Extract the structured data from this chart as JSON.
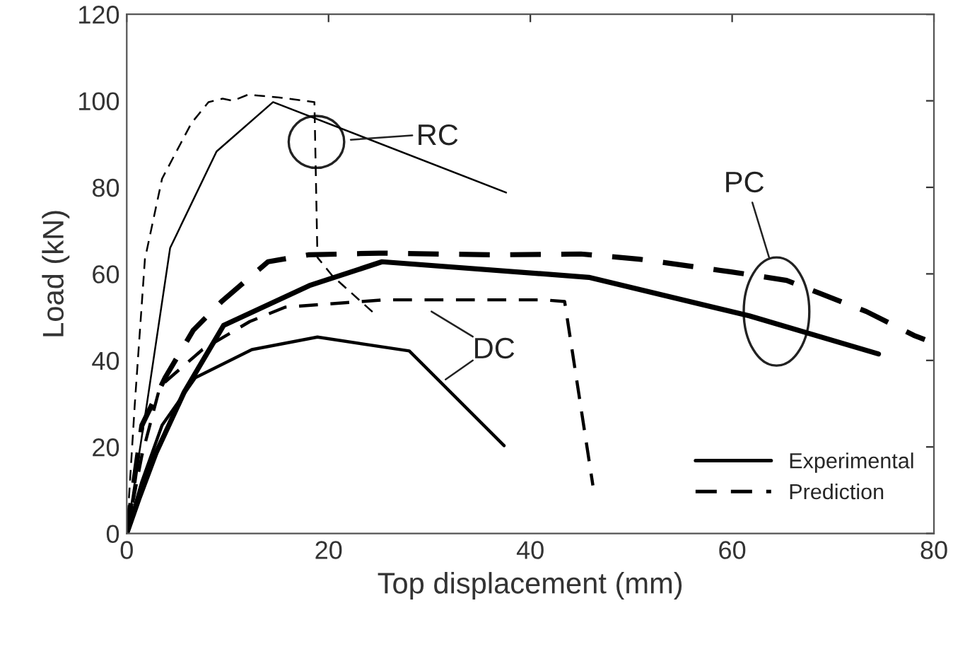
{
  "chart_data": {
    "type": "line",
    "xlabel": "Top displacement (mm)",
    "ylabel": "Load (kN)",
    "xlim": [
      0,
      80
    ],
    "xticks": [
      0,
      20,
      40,
      60,
      80
    ],
    "ylim": [
      0,
      120
    ],
    "yticks": [
      0,
      20,
      40,
      60,
      80,
      100,
      120
    ],
    "grid": false,
    "legend": "bottom right",
    "marker": "none",
    "series": [
      {
        "color": "#000000",
        "line_style": "solid",
        "x": [
          0,
          2,
          4.3,
          8.9,
          14.5,
          37.6
        ],
        "values": [
          0,
          30,
          66,
          88.3,
          99.7,
          78.8
        ]
      },
      {
        "color": "#000000",
        "line_style": "dashed",
        "x": [
          0,
          0.8,
          1.8,
          3.5,
          6.4,
          8.1,
          9.5,
          10.5,
          12,
          15,
          18.6,
          18.9,
          20.4,
          24.6
        ],
        "values": [
          0,
          30,
          63.4,
          82,
          94.8,
          99.7,
          100.5,
          100,
          101.4,
          100.8,
          99.7,
          63.8,
          59.5,
          50.7
        ]
      },
      {
        "name": "Experimental",
        "color": "#000000",
        "line_style": "solid",
        "x": [
          0,
          1.2,
          2.9,
          5.7,
          9.6,
          18.1,
          25.3,
          45.8,
          61.7,
          74.5
        ],
        "values": [
          0,
          8,
          18.6,
          32.7,
          48.1,
          57.3,
          62.8,
          59.2,
          50.3,
          41.5
        ]
      },
      {
        "name": "Prediction",
        "color": "#000000",
        "line_style": "dashed",
        "x": [
          0,
          1.5,
          3.8,
          6.6,
          9.4,
          14,
          18,
          25,
          36.5,
          45,
          50.8,
          59.8,
          65.4,
          68.6,
          73.3,
          78,
          79.1
        ],
        "values": [
          0,
          25,
          36,
          47,
          53.6,
          62.8,
          64.4,
          64.8,
          64.4,
          64.6,
          63.4,
          60.5,
          58.5,
          55.6,
          51.3,
          45.8,
          44.8
        ]
      },
      {
        "color": "#000000",
        "line_style": "solid",
        "x": [
          0,
          1.5,
          3.5,
          6.8,
          12.4,
          18.9,
          28,
          37.4
        ],
        "values": [
          0,
          12,
          25,
          36,
          42.5,
          45.4,
          42.2,
          20.3
        ]
      },
      {
        "color": "#000000",
        "line_style": "dashed",
        "x": [
          0,
          1.5,
          3.3,
          7.5,
          12.2,
          15.7,
          25.5,
          41.3,
          43.4,
          46.2
        ],
        "values": [
          0,
          18,
          34,
          42.5,
          49,
          52.3,
          54,
          54,
          53.6,
          11.1
        ]
      }
    ],
    "annotations": [
      "RC",
      "PC",
      "DC"
    ]
  }
}
